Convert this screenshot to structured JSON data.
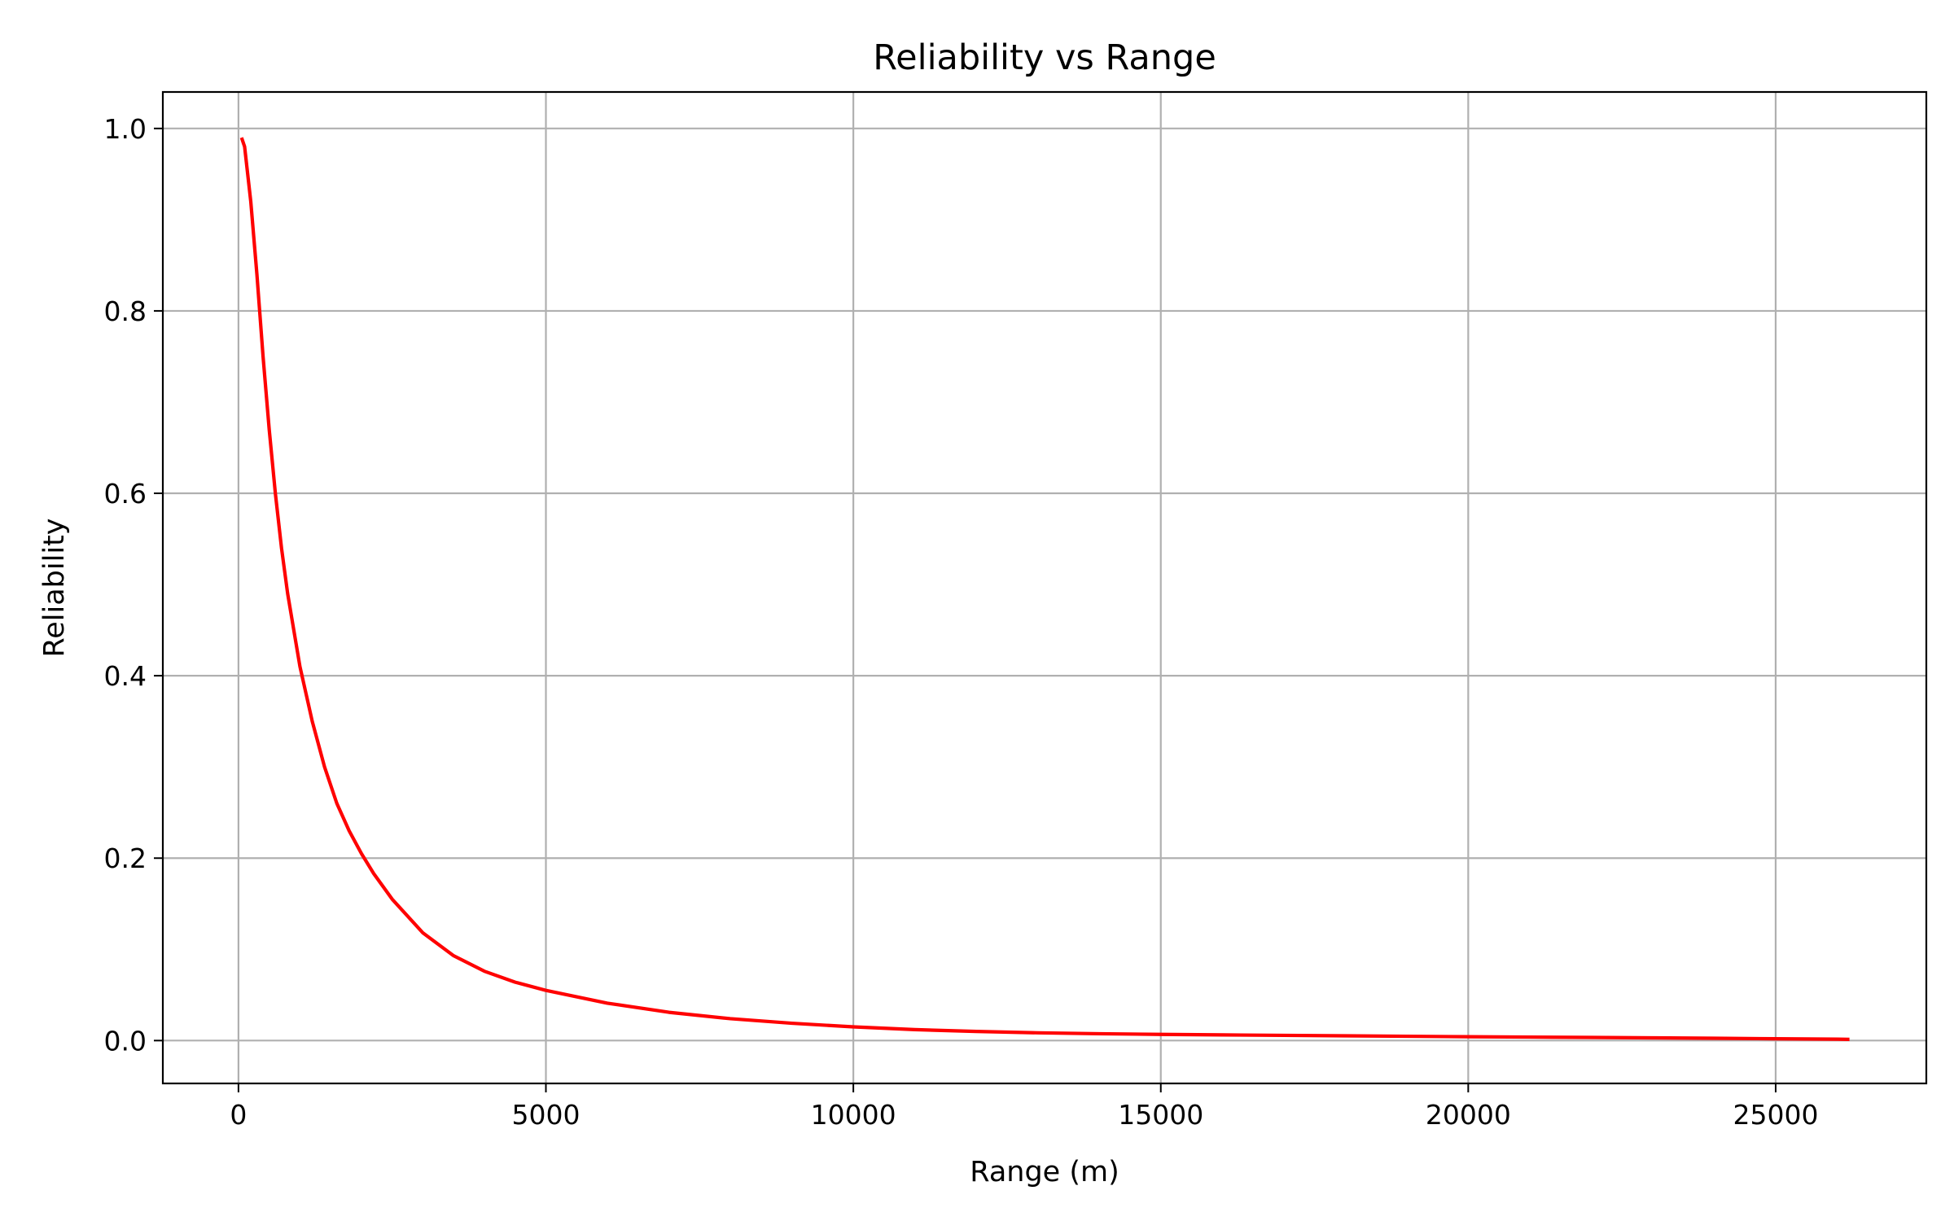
{
  "chart_data": {
    "type": "line",
    "title": "Reliability vs Range",
    "xlabel": "Range (m)",
    "ylabel": "Reliability",
    "xlim": [
      -1230,
      27450
    ],
    "ylim": [
      -0.047,
      1.04
    ],
    "xticks": [
      0,
      5000,
      10000,
      15000,
      20000,
      25000
    ],
    "xtick_labels": [
      "0",
      "5000",
      "10000",
      "15000",
      "20000",
      "25000"
    ],
    "yticks": [
      0.0,
      0.2,
      0.4,
      0.6,
      0.8,
      1.0
    ],
    "ytick_labels": [
      "0.0",
      "0.2",
      "0.4",
      "0.6",
      "0.8",
      "1.0"
    ],
    "grid": true,
    "series": [
      {
        "color": "#ff0000",
        "x": [
          50,
          100,
          200,
          300,
          400,
          500,
          600,
          700,
          800,
          900,
          1000,
          1100,
          1200,
          1400,
          1600,
          1800,
          2000,
          2200,
          2500,
          3000,
          3500,
          4000,
          4500,
          5000,
          6000,
          7000,
          8000,
          9000,
          10000,
          11000,
          12000,
          13000,
          14000,
          15000,
          16000,
          17000,
          18000,
          19000,
          20000,
          21000,
          22000,
          23000,
          24000,
          25000,
          26000,
          26200
        ],
        "y": [
          0.99,
          0.98,
          0.92,
          0.84,
          0.75,
          0.67,
          0.6,
          0.54,
          0.49,
          0.45,
          0.41,
          0.38,
          0.35,
          0.3,
          0.26,
          0.23,
          0.205,
          0.183,
          0.155,
          0.118,
          0.093,
          0.076,
          0.064,
          0.055,
          0.041,
          0.031,
          0.024,
          0.019,
          0.015,
          0.012,
          0.01,
          0.0085,
          0.0075,
          0.0068,
          0.0062,
          0.0057,
          0.0052,
          0.0047,
          0.0042,
          0.0038,
          0.0034,
          0.003,
          0.0025,
          0.002,
          0.0015,
          0.0013
        ]
      }
    ]
  }
}
